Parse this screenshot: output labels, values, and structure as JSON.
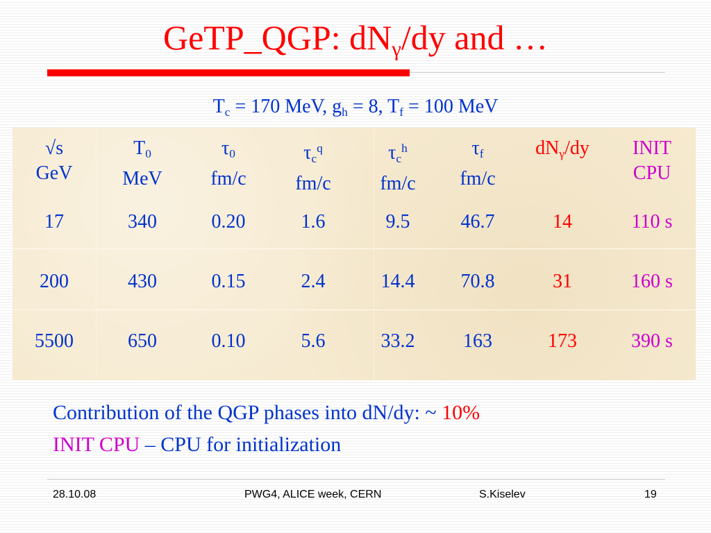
{
  "slide": {
    "title_pre": "GeTP_QGP: dN",
    "title_sub": "γ",
    "title_post": "/dy and …",
    "colors": {
      "title": "#ff0000",
      "text": "#0033cc",
      "accent_red": "#ff0000",
      "accent_magenta": "#cc00cc"
    }
  },
  "params": {
    "tc_main": "T",
    "tc_sub": "c",
    "tc_val": " = 170 MeV, g",
    "gh_sub": "h",
    "gh_val": " = 8, T",
    "tf_sub": "f",
    "tf_val": " = 100 MeV"
  },
  "table": {
    "headers": {
      "c1_l1": "√s",
      "c1_l2": "GeV",
      "c2_main": "T",
      "c2_sub": "0",
      "c2_l2": "MeV",
      "c3_main": "τ",
      "c3_sub": "0",
      "c3_l2": "fm/c",
      "c4_main": "τ",
      "c4_sub": "c",
      "c4_sup": "q",
      "c4_l2": "fm/c",
      "c5_main": "τ",
      "c5_sub": "c",
      "c5_sup": "h",
      "c5_l2": "fm/c",
      "c6_main": "τ",
      "c6_sub": "f",
      "c6_l2": "fm/c",
      "c7_pre": "dN",
      "c7_sub": "γ",
      "c7_post": "/dy",
      "c8_l1": "INIT",
      "c8_l2": "CPU"
    },
    "rows": [
      [
        "17",
        "340",
        "0.20",
        "1.6",
        "9.5",
        "46.7",
        "14",
        "110 s"
      ],
      [
        "200",
        "430",
        "0.15",
        "2.4",
        "14.4",
        "70.8",
        "31",
        "160 s"
      ],
      [
        "5500",
        "650",
        "0.10",
        "5.6",
        "33.2",
        "163",
        "173",
        "390 s"
      ]
    ]
  },
  "notes": {
    "line1_text": "Contribution of the QGP phases into dN/dy: ~ ",
    "line1_pct": "10%",
    "line2_init": "INIT CPU",
    "line2_rest": " – CPU for initialization"
  },
  "footer": {
    "date": "28.10.08",
    "event": "PWG4, ALICE week, CERN",
    "author": "S.Kiselev",
    "page": "19"
  }
}
